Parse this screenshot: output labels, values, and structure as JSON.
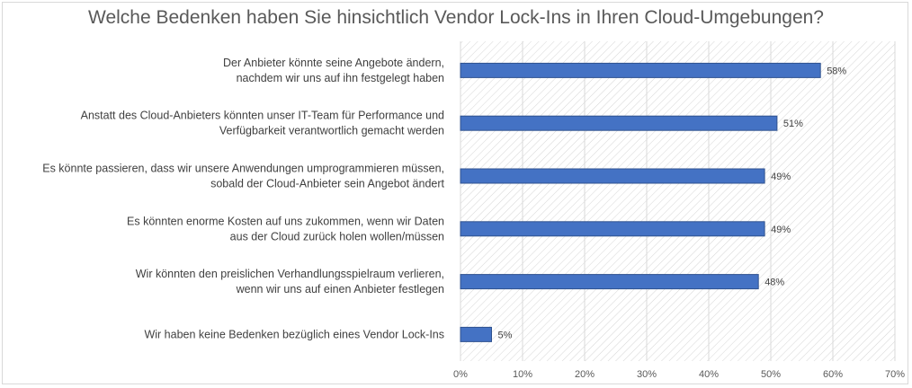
{
  "chart_data": {
    "type": "bar",
    "orientation": "horizontal",
    "title": "Welche Bedenken haben Sie hinsichtlich Vendor Lock-Ins in Ihren Cloud-Umgebungen?",
    "categories": [
      [
        "Der Anbieter könnte seine Angebote ändern,",
        "nachdem wir uns auf ihn festgelegt haben"
      ],
      [
        "Anstatt des Cloud-Anbieters könnten unser IT-Team für Performance und",
        "Verfügbarkeit verantwortlich gemacht werden"
      ],
      [
        "Es könnte passieren, dass wir unsere Anwendungen umprogrammieren müssen,",
        "sobald der Cloud-Anbieter sein Angebot ändert"
      ],
      [
        "Es könnten enorme Kosten auf uns zukommen, wenn wir Daten",
        "aus der Cloud zurück holen wollen/müssen"
      ],
      [
        "Wir könnten den preislichen Verhandlungsspielraum verlieren,",
        "wenn wir uns auf einen Anbieter festlegen"
      ],
      [
        "Wir haben keine Bedenken bezüglich eines Vendor Lock-Ins"
      ]
    ],
    "values": [
      58,
      51,
      49,
      49,
      48,
      5
    ],
    "data_labels": [
      "58%",
      "51%",
      "49%",
      "49%",
      "48%",
      "5%"
    ],
    "xlim": [
      0,
      70
    ],
    "x_ticks": [
      "0%",
      "10%",
      "20%",
      "30%",
      "40%",
      "50%",
      "60%",
      "70%"
    ],
    "bar_color": "#4472c4",
    "plot_background": "hatched",
    "grid": true
  }
}
